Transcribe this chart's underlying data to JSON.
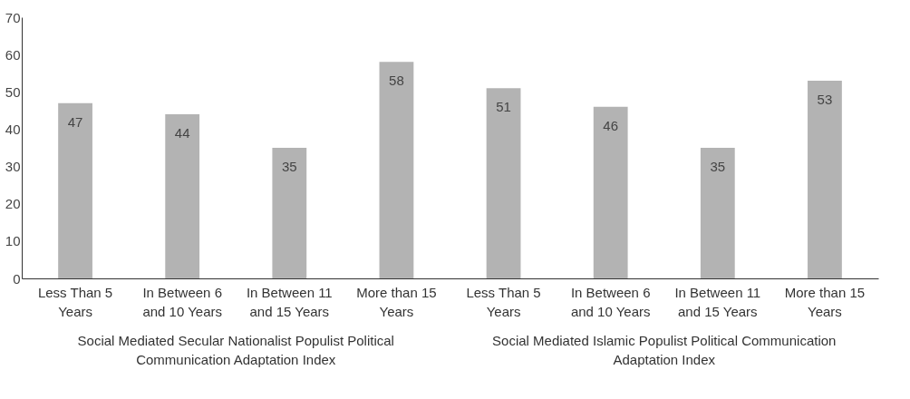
{
  "chart_data": {
    "type": "bar",
    "categories": [
      "Less Than 5 Years",
      "In Between 6 and 10 Years",
      "In Between 11 and 15 Years",
      "More than 15 Years",
      "Less Than 5 Years",
      "In Between 6 and 10 Years",
      "In Between 11 and 15 Years",
      "More than 15 Years"
    ],
    "values": [
      47,
      44,
      35,
      58,
      51,
      46,
      35,
      53
    ],
    "color": "#b3b3b3",
    "ylim": [
      0,
      70
    ],
    "yticks": [
      0,
      10,
      20,
      30,
      40,
      50,
      60,
      70
    ],
    "grid": false,
    "data_labels": true,
    "annotations": [
      "Social Mediated Secular Nationalist Populist Political Communication Adaptation Index",
      "Social Mediated Islamic Populist Political Communication Adaptation Index"
    ]
  }
}
